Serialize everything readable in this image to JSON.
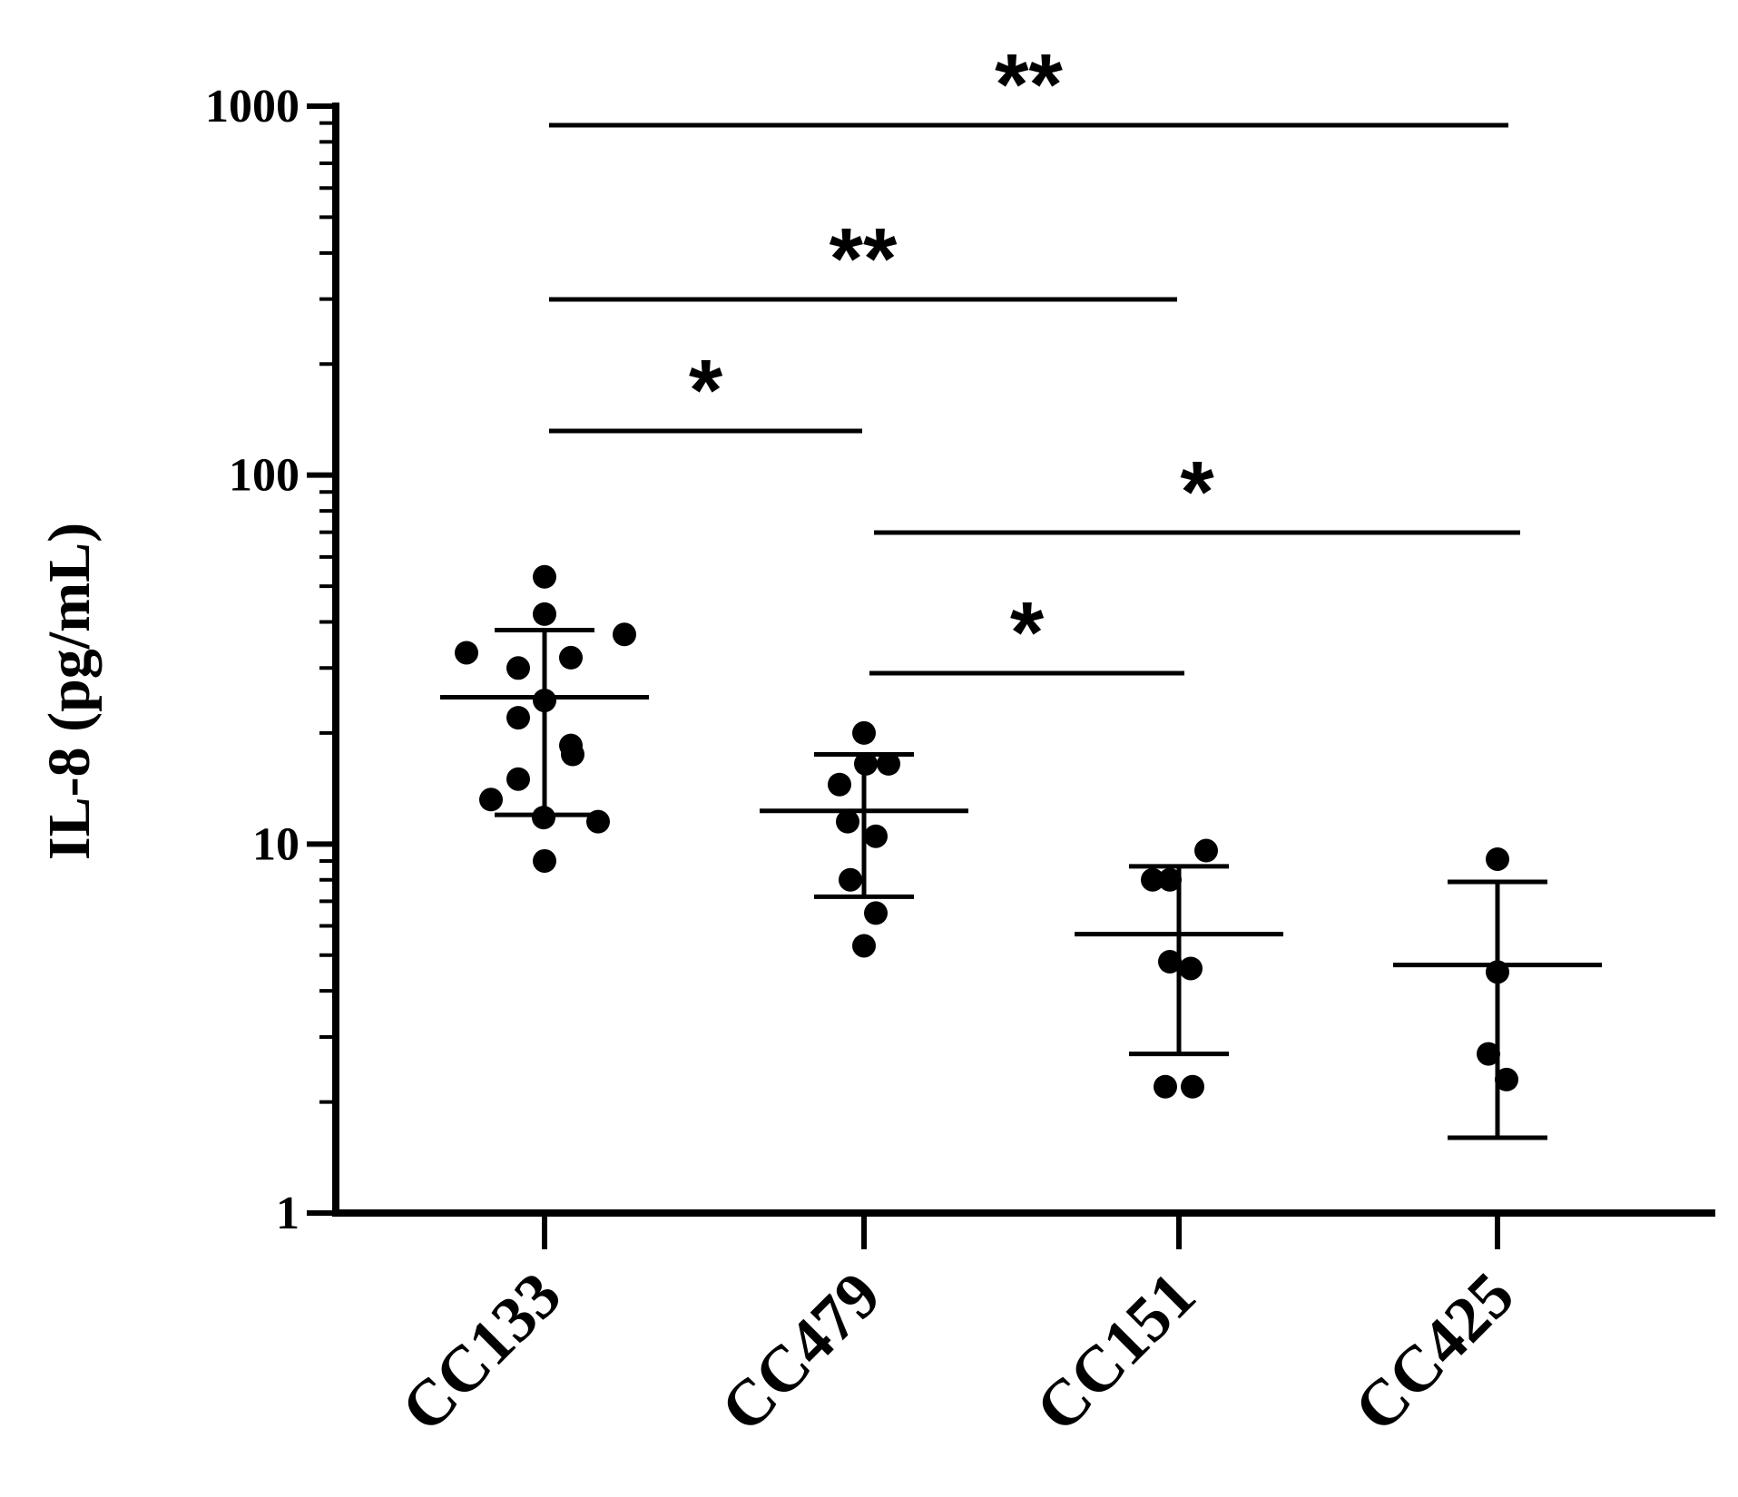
{
  "chart_data": {
    "type": "scatter",
    "ylabel": "IL-8 (pg/mL)",
    "yscale": "log",
    "ylim": [
      1,
      1000
    ],
    "yticks": [
      "1",
      "10",
      "100",
      "1000"
    ],
    "categories": [
      "CC133",
      "CC479",
      "CC151",
      "CC425"
    ],
    "groups": [
      {
        "category": "CC133",
        "mean": 25,
        "err_low": 12,
        "err_high": 38,
        "points": [
          53,
          42,
          33,
          37,
          30,
          32,
          24.5,
          22,
          18.5,
          17.5,
          15,
          13.2,
          11.8,
          11.5,
          9
        ]
      },
      {
        "category": "CC479",
        "mean": 12.3,
        "err_low": 7.2,
        "err_high": 17.5,
        "points": [
          20,
          16.5,
          16.5,
          14.5,
          11.5,
          10.5,
          8,
          6.5,
          5.3
        ]
      },
      {
        "category": "CC151",
        "mean": 5.7,
        "err_low": 2.7,
        "err_high": 8.7,
        "points": [
          9.6,
          8,
          8,
          4.8,
          4.6,
          2.2,
          2.2
        ]
      },
      {
        "category": "CC425",
        "mean": 4.7,
        "err_low": 1.6,
        "err_high": 7.9,
        "points": [
          9.1,
          4.5,
          2.7,
          2.3
        ]
      }
    ],
    "significance": [
      {
        "from": "CC133",
        "to": "CC425",
        "label": "**"
      },
      {
        "from": "CC133",
        "to": "CC151",
        "label": "**"
      },
      {
        "from": "CC133",
        "to": "CC479",
        "label": "*"
      },
      {
        "from": "CC479",
        "to": "CC425",
        "label": "*"
      },
      {
        "from": "CC479",
        "to": "CC151",
        "label": "*"
      }
    ]
  }
}
